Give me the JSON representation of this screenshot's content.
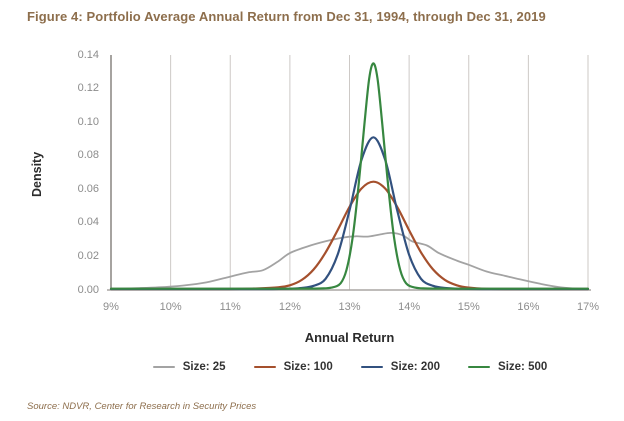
{
  "title": "Figure 4: Portfolio Average Annual Return from Dec 31, 1994, through Dec 31, 2019",
  "source": "Source: NDVR, Center for Research in Security Prices",
  "colors": {
    "title_text": "#8d6e4c",
    "grid_line": "#cdc9c6",
    "axis_line": "#908c89",
    "baseline": "#aaa6a3",
    "tick_text": "#8c8c8c",
    "axis_title_text": "#2b2b2b",
    "legend_text": "#333333"
  },
  "chart_data": {
    "type": "line",
    "title": "Portfolio Average Annual Return from Dec 31, 1994, through Dec 31, 2019",
    "xlabel": "Annual Return",
    "ylabel": "Density",
    "xlim": [
      9,
      17
    ],
    "ylim": [
      0,
      0.14
    ],
    "grid": "vertical-only",
    "legend_position": "bottom",
    "x_ticks": [
      {
        "label": "9%",
        "value": 9
      },
      {
        "label": "10%",
        "value": 10
      },
      {
        "label": "11%",
        "value": 11
      },
      {
        "label": "12%",
        "value": 12
      },
      {
        "label": "13%",
        "value": 13
      },
      {
        "label": "14%",
        "value": 14
      },
      {
        "label": "15%",
        "value": 15
      },
      {
        "label": "16%",
        "value": 16
      },
      {
        "label": "17%",
        "value": 17
      }
    ],
    "y_ticks": [
      {
        "label": "0.00",
        "value": 0.0
      },
      {
        "label": "0.02",
        "value": 0.02
      },
      {
        "label": "0.04",
        "value": 0.04
      },
      {
        "label": "0.06",
        "value": 0.06
      },
      {
        "label": "0.08",
        "value": 0.08
      },
      {
        "label": "0.10",
        "value": 0.1
      },
      {
        "label": "0.12",
        "value": 0.12
      },
      {
        "label": "0.14",
        "value": 0.14
      }
    ],
    "series": [
      {
        "name": "Size: 25",
        "slug": "size-25",
        "color": "#a3a3a3",
        "peak": {
          "x": 13.7,
          "y": 0.034
        },
        "points": [
          [
            9.0,
            0.0006
          ],
          [
            9.4,
            0.001
          ],
          [
            9.8,
            0.0016
          ],
          [
            10.2,
            0.0026
          ],
          [
            10.6,
            0.0045
          ],
          [
            11.0,
            0.008
          ],
          [
            11.3,
            0.0105
          ],
          [
            11.55,
            0.0118
          ],
          [
            11.8,
            0.017
          ],
          [
            12.0,
            0.022
          ],
          [
            12.3,
            0.026
          ],
          [
            12.6,
            0.029
          ],
          [
            12.9,
            0.0313
          ],
          [
            13.1,
            0.032
          ],
          [
            13.3,
            0.0318
          ],
          [
            13.5,
            0.033
          ],
          [
            13.7,
            0.034
          ],
          [
            13.9,
            0.0325
          ],
          [
            14.05,
            0.029
          ],
          [
            14.3,
            0.0265
          ],
          [
            14.5,
            0.022
          ],
          [
            14.8,
            0.0175
          ],
          [
            15.0,
            0.015
          ],
          [
            15.3,
            0.011
          ],
          [
            15.6,
            0.0085
          ],
          [
            15.9,
            0.006
          ],
          [
            16.2,
            0.0037
          ],
          [
            16.5,
            0.0018
          ],
          [
            16.8,
            0.0008
          ],
          [
            17.0,
            0.0006
          ]
        ]
      },
      {
        "name": "Size: 100",
        "slug": "size-100",
        "color": "#a5502d",
        "peak": {
          "x": 13.4,
          "y": 0.0645
        },
        "points": [
          [
            9.0,
            0.0006
          ],
          [
            10.0,
            0.0006
          ],
          [
            10.8,
            0.0006
          ],
          [
            11.2,
            0.0007
          ],
          [
            11.5,
            0.001
          ],
          [
            11.8,
            0.0016
          ],
          [
            12.0,
            0.0028
          ],
          [
            12.2,
            0.006
          ],
          [
            12.4,
            0.0123
          ],
          [
            12.6,
            0.0224
          ],
          [
            12.8,
            0.0356
          ],
          [
            13.0,
            0.0495
          ],
          [
            13.2,
            0.0604
          ],
          [
            13.4,
            0.0645
          ],
          [
            13.6,
            0.0604
          ],
          [
            13.8,
            0.0495
          ],
          [
            14.0,
            0.0356
          ],
          [
            14.2,
            0.0224
          ],
          [
            14.4,
            0.0123
          ],
          [
            14.6,
            0.006
          ],
          [
            14.8,
            0.0028
          ],
          [
            15.0,
            0.0014
          ],
          [
            15.3,
            0.0007
          ],
          [
            15.7,
            0.0006
          ],
          [
            16.3,
            0.0006
          ],
          [
            17.0,
            0.0006
          ]
        ]
      },
      {
        "name": "Size: 200",
        "slug": "size-200",
        "color": "#32517f",
        "peak": {
          "x": 13.4,
          "y": 0.091
        },
        "points": [
          [
            9.0,
            0.0006
          ],
          [
            10.0,
            0.0006
          ],
          [
            11.0,
            0.0006
          ],
          [
            11.7,
            0.0006
          ],
          [
            12.0,
            0.0008
          ],
          [
            12.2,
            0.0012
          ],
          [
            12.4,
            0.0025
          ],
          [
            12.6,
            0.0067
          ],
          [
            12.8,
            0.021
          ],
          [
            13.0,
            0.0474
          ],
          [
            13.2,
            0.0773
          ],
          [
            13.4,
            0.091
          ],
          [
            13.6,
            0.0773
          ],
          [
            13.8,
            0.0474
          ],
          [
            14.0,
            0.021
          ],
          [
            14.2,
            0.0067
          ],
          [
            14.4,
            0.0025
          ],
          [
            14.6,
            0.0012
          ],
          [
            14.9,
            0.0007
          ],
          [
            15.4,
            0.0006
          ],
          [
            16.2,
            0.0006
          ],
          [
            17.0,
            0.0006
          ]
        ]
      },
      {
        "name": "Size: 500",
        "slug": "size-500",
        "color": "#378740",
        "peak": {
          "x": 13.4,
          "y": 0.135
        },
        "points": [
          [
            9.0,
            0.0008
          ],
          [
            9.8,
            0.0008
          ],
          [
            10.6,
            0.0008
          ],
          [
            11.4,
            0.0008
          ],
          [
            12.0,
            0.0008
          ],
          [
            12.5,
            0.0009
          ],
          [
            12.7,
            0.0014
          ],
          [
            12.85,
            0.004
          ],
          [
            12.95,
            0.012
          ],
          [
            13.05,
            0.0307
          ],
          [
            13.15,
            0.0613
          ],
          [
            13.25,
            0.0987
          ],
          [
            13.33,
            0.126
          ],
          [
            13.4,
            0.135
          ],
          [
            13.47,
            0.126
          ],
          [
            13.55,
            0.0987
          ],
          [
            13.65,
            0.0613
          ],
          [
            13.75,
            0.0307
          ],
          [
            13.85,
            0.012
          ],
          [
            13.95,
            0.004
          ],
          [
            14.1,
            0.0014
          ],
          [
            14.3,
            0.0009
          ],
          [
            14.8,
            0.0008
          ],
          [
            15.6,
            0.0008
          ],
          [
            16.3,
            0.0008
          ],
          [
            17.0,
            0.0008
          ]
        ]
      }
    ]
  }
}
